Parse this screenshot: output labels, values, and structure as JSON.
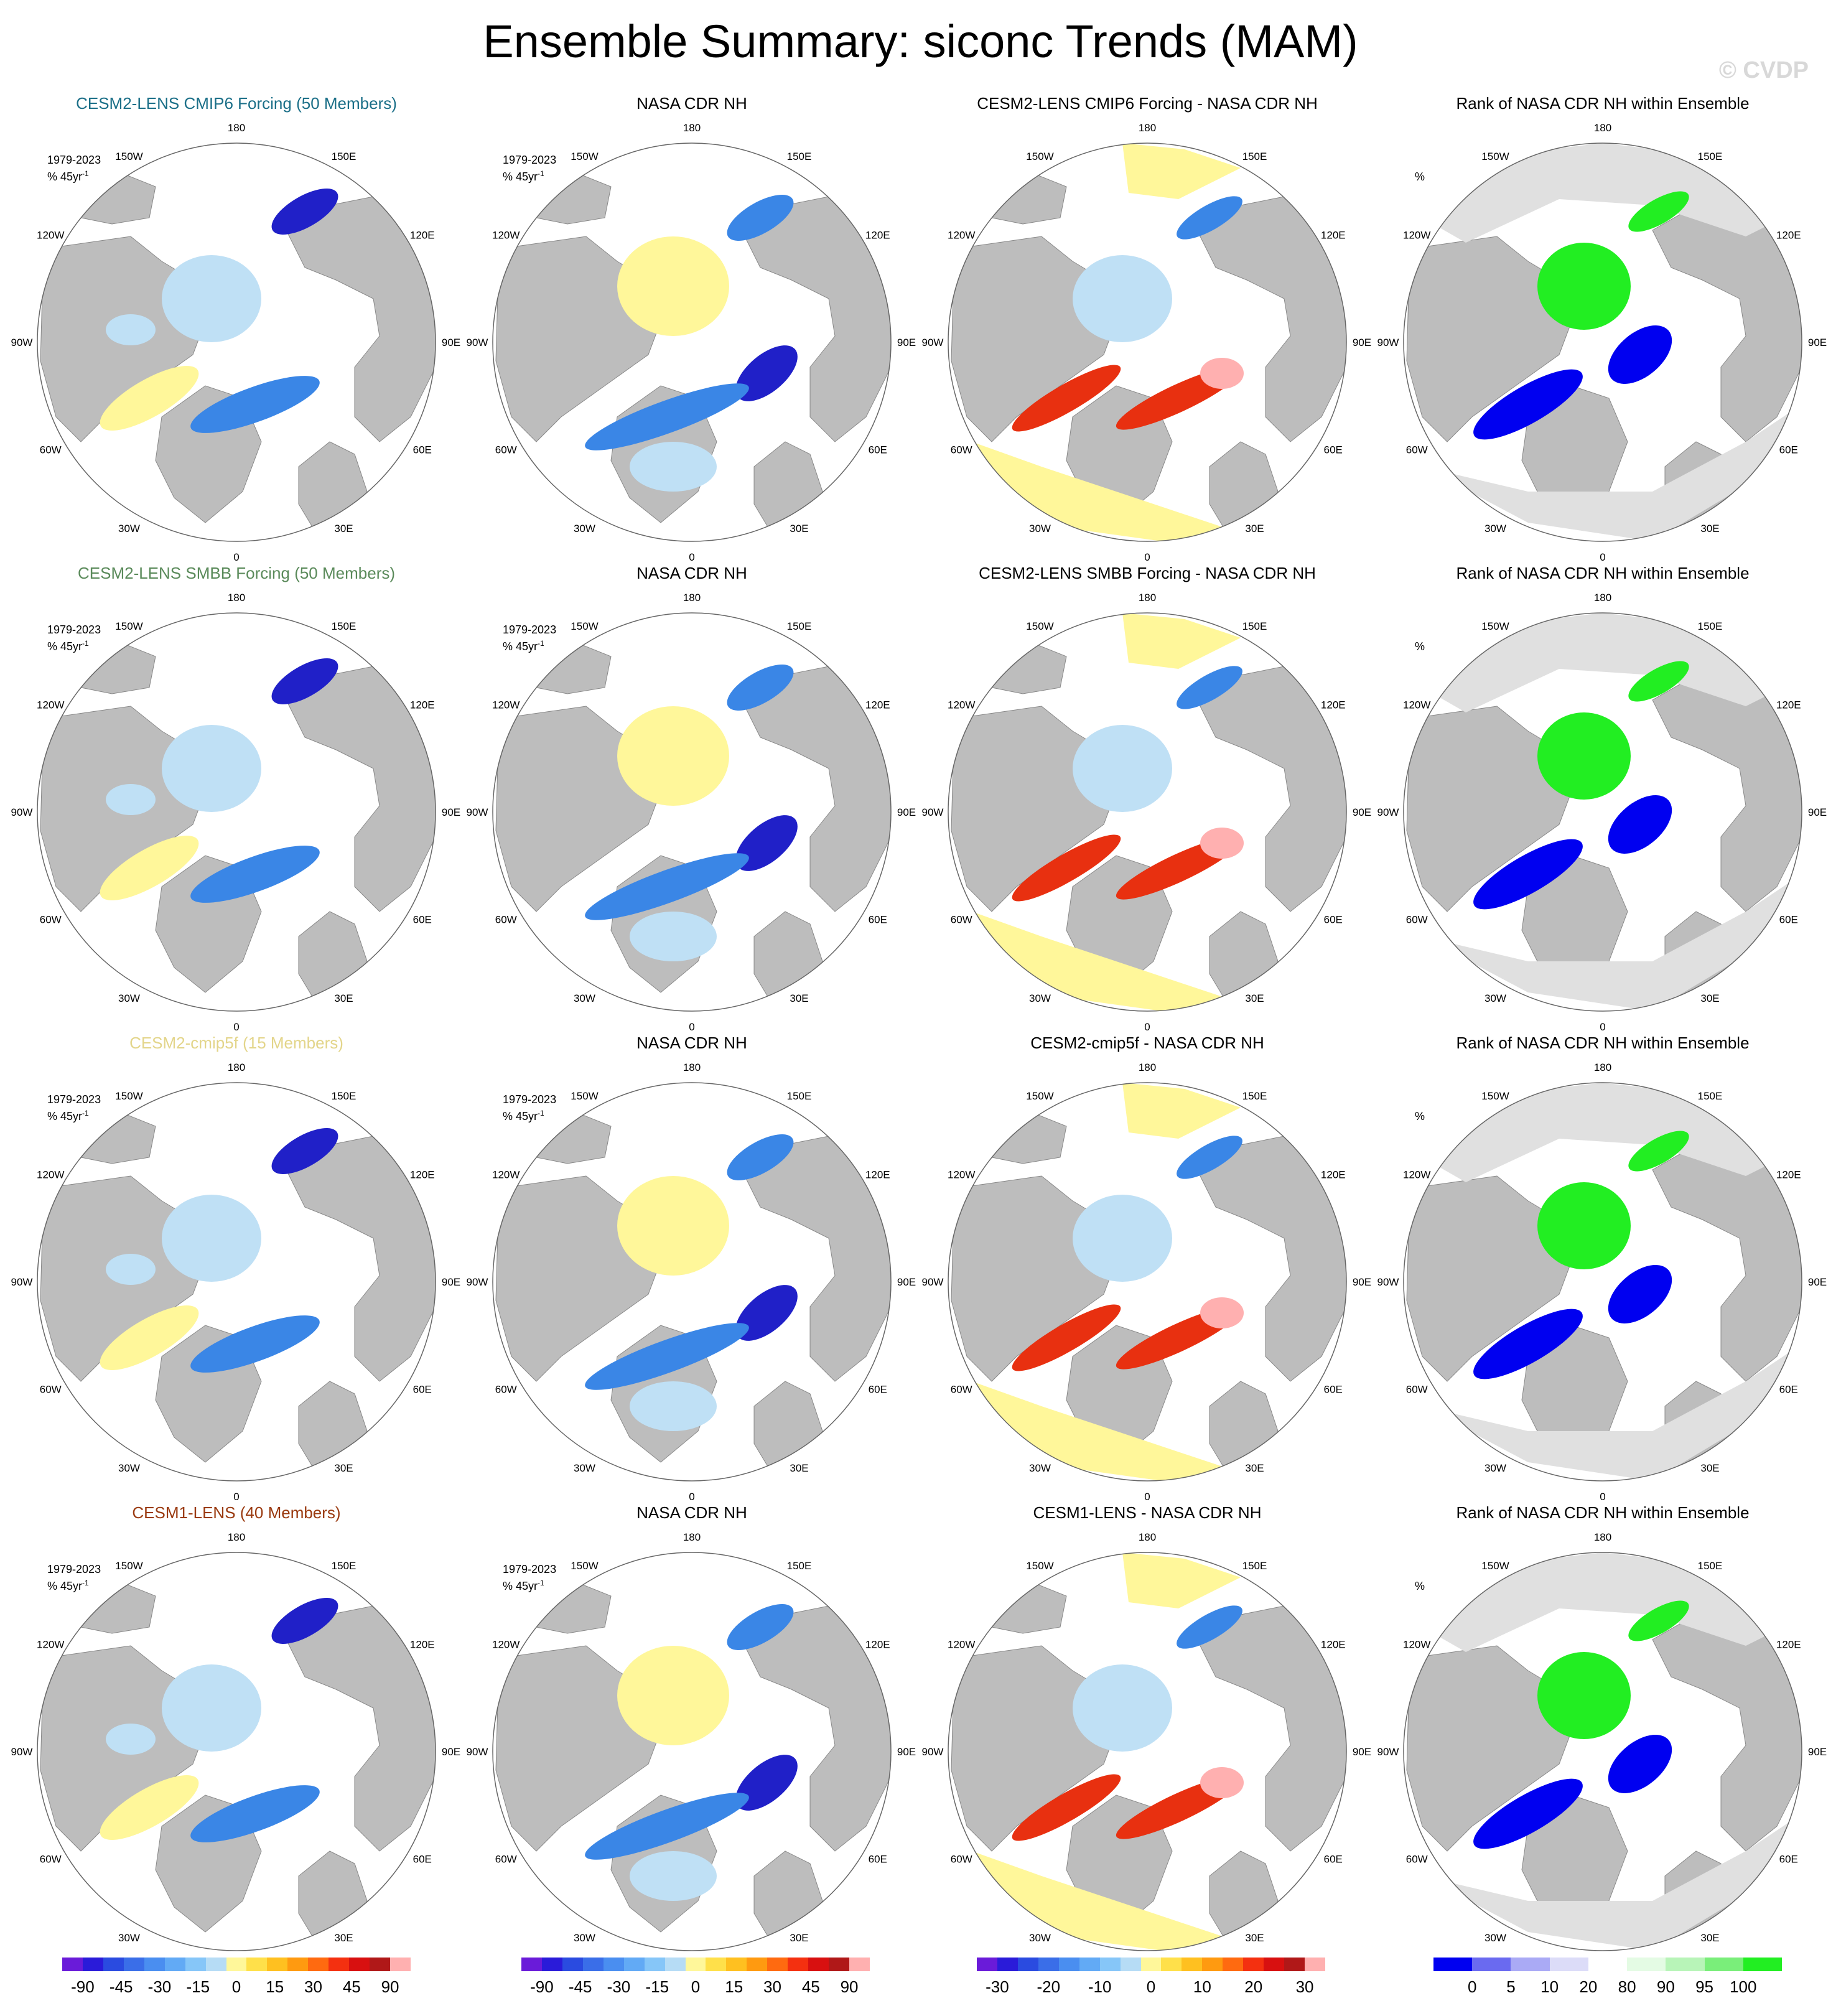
{
  "title": "Ensemble Summary: siconc Trends (MAM)",
  "watermark": "© CVDP",
  "map_labels": {
    "lon": {
      "180": "180",
      "150W": "150W",
      "150E": "150E",
      "120W": "120W",
      "120E": "120E",
      "90W": "90W",
      "90E": "90E",
      "60W": "60W",
      "60E": "60E",
      "30W": "30W",
      "30E": "30E",
      "0": "0"
    }
  },
  "rows": [
    {
      "ens": {
        "title": "CESM2-LENS CMIP6 Forcing (50 Members)",
        "color": "#1b6f88"
      },
      "obs": {
        "title": "NASA CDR NH"
      },
      "diff": {
        "title": "CESM2-LENS CMIP6 Forcing - NASA CDR NH"
      },
      "rank": {
        "title": "Rank of NASA CDR NH within Ensemble"
      },
      "period": "1979-2023",
      "units_base": "% 45yr",
      "units_exp": "-1",
      "rank_units": "%"
    },
    {
      "ens": {
        "title": "CESM2-LENS SMBB Forcing (50 Members)",
        "color": "#5a8a5a"
      },
      "obs": {
        "title": "NASA CDR NH"
      },
      "diff": {
        "title": "CESM2-LENS SMBB Forcing - NASA CDR NH"
      },
      "rank": {
        "title": "Rank of NASA CDR NH within Ensemble"
      },
      "period": "1979-2023",
      "units_base": "% 45yr",
      "units_exp": "-1",
      "rank_units": "%"
    },
    {
      "ens": {
        "title": "CESM2-cmip5f (15 Members)",
        "color": "#e3d58a"
      },
      "obs": {
        "title": "NASA CDR NH"
      },
      "diff": {
        "title": "CESM2-cmip5f - NASA CDR NH"
      },
      "rank": {
        "title": "Rank of NASA CDR NH within Ensemble"
      },
      "period": "1979-2023",
      "units_base": "% 45yr",
      "units_exp": "-1",
      "rank_units": "%"
    },
    {
      "ens": {
        "title": "CESM1-LENS (40 Members)",
        "color": "#9a3a10"
      },
      "obs": {
        "title": "NASA CDR NH"
      },
      "diff": {
        "title": "CESM1-LENS - NASA CDR NH"
      },
      "rank": {
        "title": "Rank of NASA CDR NH within Ensemble"
      },
      "period": "1979-2023",
      "units_base": "% 45yr",
      "units_exp": "-1",
      "rank_units": "%"
    }
  ],
  "colorbars": {
    "trend": {
      "colors": [
        "#6a1bd9",
        "#2a1bd9",
        "#2a4be0",
        "#3a6ee8",
        "#4a8ef0",
        "#62aaf5",
        "#86c6f8",
        "#b6dcf5",
        "#fff79a",
        "#ffe04a",
        "#ffc020",
        "#ff9a10",
        "#ff6a10",
        "#f43010",
        "#d81010",
        "#b01818",
        "#ffb0b0"
      ],
      "labels": [
        "-90",
        "-45",
        "-30",
        "-15",
        "0",
        "15",
        "30",
        "45",
        "90"
      ]
    },
    "diff": {
      "colors": [
        "#6a1bd9",
        "#2a1bd9",
        "#2a4be0",
        "#3a6ee8",
        "#4a8ef0",
        "#62aaf5",
        "#86c6f8",
        "#b6dcf5",
        "#fff79a",
        "#ffe04a",
        "#ffc020",
        "#ff9a10",
        "#ff6a10",
        "#f43010",
        "#d81010",
        "#b01818",
        "#ffb0b0"
      ],
      "labels": [
        "-30",
        "-20",
        "-10",
        "0",
        "10",
        "20",
        "30"
      ]
    },
    "rank": {
      "colors": [
        "#0000f0",
        "#6a6af0",
        "#aaaaf5",
        "#dcdcf8",
        "#ffffff",
        "#e4fbe4",
        "#b8f4b8",
        "#7aee7a",
        "#22ee22"
      ],
      "labels": [
        "0",
        "5",
        "10",
        "20",
        "80",
        "90",
        "95",
        "100"
      ]
    }
  },
  "map_colors": {
    "land": "#bdbdbd",
    "ocean": "#ffffff",
    "ice_light": "#bfe0f5",
    "yellow": "#fff79a",
    "blue_mid": "#3a86e6",
    "blue_dark": "#2020c8",
    "red": "#e83010",
    "pink": "#ffb0b0",
    "green": "#22ee22",
    "rank_blue": "#0000f0",
    "rank_grey": "#e0e0e0"
  }
}
